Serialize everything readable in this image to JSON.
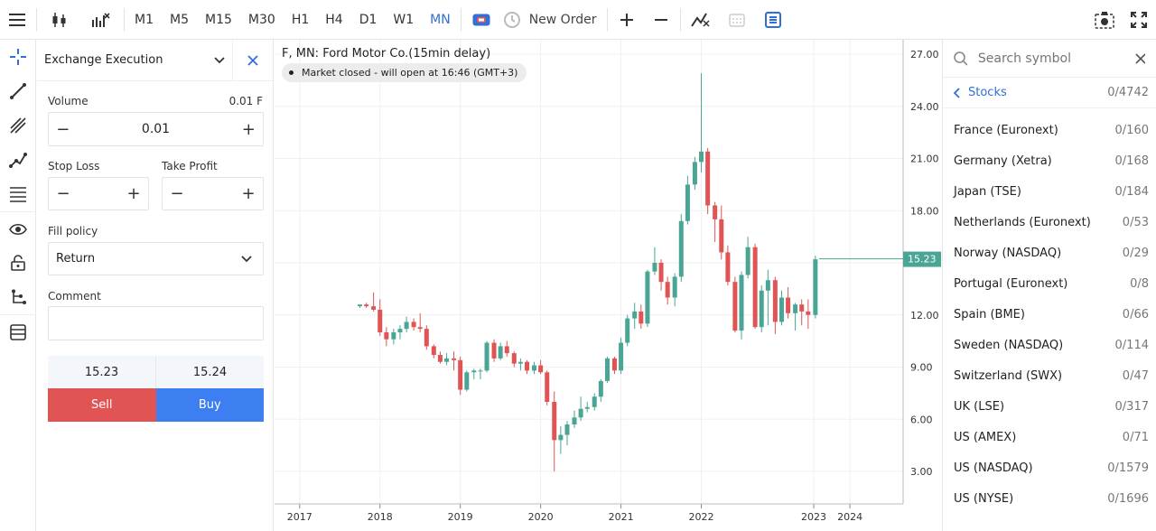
{
  "toolbar": {
    "timeframes": [
      "M1",
      "M5",
      "M15",
      "M30",
      "H1",
      "H4",
      "D1",
      "W1",
      "MN"
    ],
    "active_timeframe": "MN",
    "new_order_label": "New Order"
  },
  "order_panel": {
    "title": "Exchange Execution",
    "volume_label": "Volume",
    "volume_hint": "0.01 F",
    "volume_value": "0.01",
    "stop_loss_label": "Stop Loss",
    "take_profit_label": "Take Profit",
    "fill_policy_label": "Fill policy",
    "fill_policy_value": "Return",
    "comment_label": "Comment",
    "bid": "15.23",
    "ask": "15.24",
    "sell_label": "Sell",
    "buy_label": "Buy",
    "sell_color": "#e05454",
    "buy_color": "#3d7ff0"
  },
  "chart": {
    "title": "F, MN: Ford Motor Co.(15min delay)",
    "status": "Market closed - will open at 16:46 (GMT+3)",
    "price_label": "15.23",
    "up_color": "#4aa594",
    "down_color": "#e05454"
  },
  "chart_data": {
    "type": "candlestick",
    "title": "F, MN: Ford Motor Co.(15min delay)",
    "y_ticks": [
      "27.00",
      "24.00",
      "21.00",
      "18.00",
      "15.00",
      "12.00",
      "9.00",
      "6.00",
      "3.00"
    ],
    "ylim": [
      1.9,
      27.7
    ],
    "x_ticks": [
      "2017",
      "2018",
      "2019",
      "2020",
      "2021",
      "2022",
      "2023",
      "2024"
    ],
    "x_tick_years": [
      2017,
      2018,
      2019,
      2020,
      2021,
      2022,
      2023.4,
      2023.85
    ],
    "xlim": [
      2016.8,
      2024.4
    ],
    "last_price": 15.23,
    "candles": [
      {
        "t": 2017.75,
        "o": 12.5,
        "h": 12.6,
        "l": 12.4,
        "c": 12.6
      },
      {
        "t": 2017.83,
        "o": 12.6,
        "h": 12.7,
        "l": 12.4,
        "c": 12.5
      },
      {
        "t": 2017.92,
        "o": 12.5,
        "h": 13.3,
        "l": 12.2,
        "c": 12.3
      },
      {
        "t": 2018.0,
        "o": 12.3,
        "h": 12.9,
        "l": 10.8,
        "c": 11.0
      },
      {
        "t": 2018.08,
        "o": 11.0,
        "h": 11.3,
        "l": 10.2,
        "c": 10.6
      },
      {
        "t": 2018.17,
        "o": 10.6,
        "h": 11.2,
        "l": 10.3,
        "c": 11.0
      },
      {
        "t": 2018.25,
        "o": 11.0,
        "h": 11.4,
        "l": 10.6,
        "c": 11.2
      },
      {
        "t": 2018.33,
        "o": 11.2,
        "h": 11.9,
        "l": 11.0,
        "c": 11.6
      },
      {
        "t": 2018.42,
        "o": 11.6,
        "h": 11.8,
        "l": 11.1,
        "c": 11.3
      },
      {
        "t": 2018.5,
        "o": 11.3,
        "h": 12.1,
        "l": 11.0,
        "c": 11.2
      },
      {
        "t": 2018.58,
        "o": 11.2,
        "h": 11.4,
        "l": 10.0,
        "c": 10.2
      },
      {
        "t": 2018.67,
        "o": 10.2,
        "h": 10.3,
        "l": 9.5,
        "c": 9.7
      },
      {
        "t": 2018.75,
        "o": 9.7,
        "h": 9.9,
        "l": 9.2,
        "c": 9.3
      },
      {
        "t": 2018.83,
        "o": 9.3,
        "h": 9.8,
        "l": 9.1,
        "c": 9.5
      },
      {
        "t": 2018.92,
        "o": 9.5,
        "h": 9.9,
        "l": 8.8,
        "c": 9.4
      },
      {
        "t": 2019.0,
        "o": 9.4,
        "h": 9.6,
        "l": 7.4,
        "c": 7.7
      },
      {
        "t": 2019.08,
        "o": 7.7,
        "h": 8.8,
        "l": 7.6,
        "c": 8.7
      },
      {
        "t": 2019.17,
        "o": 8.7,
        "h": 8.9,
        "l": 8.3,
        "c": 8.8
      },
      {
        "t": 2019.25,
        "o": 8.8,
        "h": 8.9,
        "l": 8.3,
        "c": 8.8
      },
      {
        "t": 2019.33,
        "o": 8.8,
        "h": 10.5,
        "l": 8.7,
        "c": 10.4
      },
      {
        "t": 2019.42,
        "o": 10.4,
        "h": 10.6,
        "l": 9.3,
        "c": 9.5
      },
      {
        "t": 2019.5,
        "o": 9.5,
        "h": 10.4,
        "l": 9.4,
        "c": 10.2
      },
      {
        "t": 2019.58,
        "o": 10.2,
        "h": 10.5,
        "l": 9.6,
        "c": 9.8
      },
      {
        "t": 2019.67,
        "o": 9.8,
        "h": 9.9,
        "l": 9.0,
        "c": 9.2
      },
      {
        "t": 2019.75,
        "o": 9.2,
        "h": 9.5,
        "l": 8.8,
        "c": 9.3
      },
      {
        "t": 2019.83,
        "o": 9.3,
        "h": 9.4,
        "l": 8.6,
        "c": 8.8
      },
      {
        "t": 2019.92,
        "o": 8.8,
        "h": 9.3,
        "l": 8.6,
        "c": 9.1
      },
      {
        "t": 2020.0,
        "o": 9.1,
        "h": 9.4,
        "l": 8.6,
        "c": 8.7
      },
      {
        "t": 2020.08,
        "o": 8.7,
        "h": 8.8,
        "l": 6.8,
        "c": 7.0
      },
      {
        "t": 2020.17,
        "o": 7.0,
        "h": 7.6,
        "l": 3.0,
        "c": 4.8
      },
      {
        "t": 2020.25,
        "o": 4.8,
        "h": 5.6,
        "l": 4.0,
        "c": 5.1
      },
      {
        "t": 2020.33,
        "o": 5.1,
        "h": 5.9,
        "l": 4.5,
        "c": 5.7
      },
      {
        "t": 2020.42,
        "o": 5.7,
        "h": 6.5,
        "l": 5.5,
        "c": 6.1
      },
      {
        "t": 2020.5,
        "o": 6.1,
        "h": 7.3,
        "l": 5.9,
        "c": 6.6
      },
      {
        "t": 2020.58,
        "o": 6.6,
        "h": 7.0,
        "l": 6.4,
        "c": 6.7
      },
      {
        "t": 2020.67,
        "o": 6.7,
        "h": 7.5,
        "l": 6.5,
        "c": 7.3
      },
      {
        "t": 2020.75,
        "o": 7.3,
        "h": 8.3,
        "l": 7.0,
        "c": 8.2
      },
      {
        "t": 2020.83,
        "o": 8.2,
        "h": 9.6,
        "l": 8.1,
        "c": 9.5
      },
      {
        "t": 2020.92,
        "o": 9.5,
        "h": 9.6,
        "l": 8.6,
        "c": 8.8
      },
      {
        "t": 2021.0,
        "o": 8.8,
        "h": 10.7,
        "l": 8.6,
        "c": 10.4
      },
      {
        "t": 2021.08,
        "o": 10.4,
        "h": 12.0,
        "l": 10.2,
        "c": 11.8
      },
      {
        "t": 2021.17,
        "o": 11.8,
        "h": 12.7,
        "l": 11.2,
        "c": 12.2
      },
      {
        "t": 2021.25,
        "o": 12.2,
        "h": 12.6,
        "l": 11.2,
        "c": 11.5
      },
      {
        "t": 2021.33,
        "o": 11.5,
        "h": 14.6,
        "l": 11.3,
        "c": 14.5
      },
      {
        "t": 2021.42,
        "o": 14.5,
        "h": 15.9,
        "l": 14.3,
        "c": 15.0
      },
      {
        "t": 2021.5,
        "o": 15.0,
        "h": 15.2,
        "l": 13.4,
        "c": 13.9
      },
      {
        "t": 2021.58,
        "o": 13.9,
        "h": 14.2,
        "l": 12.6,
        "c": 13.0
      },
      {
        "t": 2021.67,
        "o": 13.0,
        "h": 14.4,
        "l": 12.5,
        "c": 14.2
      },
      {
        "t": 2021.75,
        "o": 14.2,
        "h": 17.8,
        "l": 13.9,
        "c": 17.4
      },
      {
        "t": 2021.83,
        "o": 17.4,
        "h": 20.0,
        "l": 17.2,
        "c": 19.5
      },
      {
        "t": 2021.92,
        "o": 19.5,
        "h": 21.1,
        "l": 19.2,
        "c": 20.8
      },
      {
        "t": 2022.0,
        "o": 20.8,
        "h": 25.9,
        "l": 20.2,
        "c": 21.4
      },
      {
        "t": 2022.08,
        "o": 21.4,
        "h": 21.6,
        "l": 17.8,
        "c": 18.3
      },
      {
        "t": 2022.17,
        "o": 18.3,
        "h": 18.5,
        "l": 16.2,
        "c": 17.5
      },
      {
        "t": 2022.25,
        "o": 17.5,
        "h": 18.3,
        "l": 15.2,
        "c": 15.6
      },
      {
        "t": 2022.33,
        "o": 15.6,
        "h": 16.0,
        "l": 13.7,
        "c": 13.9
      },
      {
        "t": 2022.42,
        "o": 13.9,
        "h": 14.2,
        "l": 11.0,
        "c": 11.1
      },
      {
        "t": 2022.5,
        "o": 11.1,
        "h": 14.5,
        "l": 10.6,
        "c": 14.3
      },
      {
        "t": 2022.58,
        "o": 14.3,
        "h": 16.5,
        "l": 14.1,
        "c": 15.9
      },
      {
        "t": 2022.67,
        "o": 15.9,
        "h": 16.1,
        "l": 11.2,
        "c": 11.3
      },
      {
        "t": 2022.75,
        "o": 11.3,
        "h": 13.7,
        "l": 11.0,
        "c": 13.4
      },
      {
        "t": 2022.83,
        "o": 13.4,
        "h": 14.6,
        "l": 11.4,
        "c": 14.0
      },
      {
        "t": 2022.92,
        "o": 14.0,
        "h": 14.2,
        "l": 10.9,
        "c": 11.6
      },
      {
        "t": 2023.0,
        "o": 11.6,
        "h": 13.4,
        "l": 11.4,
        "c": 13.0
      },
      {
        "t": 2023.08,
        "o": 13.0,
        "h": 13.6,
        "l": 11.8,
        "c": 12.1
      },
      {
        "t": 2023.17,
        "o": 12.1,
        "h": 12.7,
        "l": 11.1,
        "c": 12.6
      },
      {
        "t": 2023.25,
        "o": 12.6,
        "h": 12.9,
        "l": 11.4,
        "c": 12.2
      },
      {
        "t": 2023.33,
        "o": 12.2,
        "h": 12.9,
        "l": 11.2,
        "c": 12.0
      },
      {
        "t": 2023.42,
        "o": 12.0,
        "h": 15.4,
        "l": 11.8,
        "c": 15.2
      }
    ]
  },
  "symbols": {
    "search_placeholder": "Search symbol",
    "back_label": "Stocks",
    "back_count": "0/4742",
    "items": [
      {
        "name": "France (Euronext)",
        "count": "0/160"
      },
      {
        "name": "Germany (Xetra)",
        "count": "0/168"
      },
      {
        "name": "Japan (TSE)",
        "count": "0/184"
      },
      {
        "name": "Netherlands (Euronext)",
        "count": "0/53"
      },
      {
        "name": "Norway (NASDAQ)",
        "count": "0/29"
      },
      {
        "name": "Portugal (Euronext)",
        "count": "0/8"
      },
      {
        "name": "Spain (BME)",
        "count": "0/66"
      },
      {
        "name": "Sweden (NASDAQ)",
        "count": "0/114"
      },
      {
        "name": "Switzerland (SWX)",
        "count": "0/47"
      },
      {
        "name": "UK (LSE)",
        "count": "0/317"
      },
      {
        "name": "US (AMEX)",
        "count": "0/71"
      },
      {
        "name": "US (NASDAQ)",
        "count": "0/1579"
      },
      {
        "name": "US (NYSE)",
        "count": "0/1696"
      }
    ]
  }
}
